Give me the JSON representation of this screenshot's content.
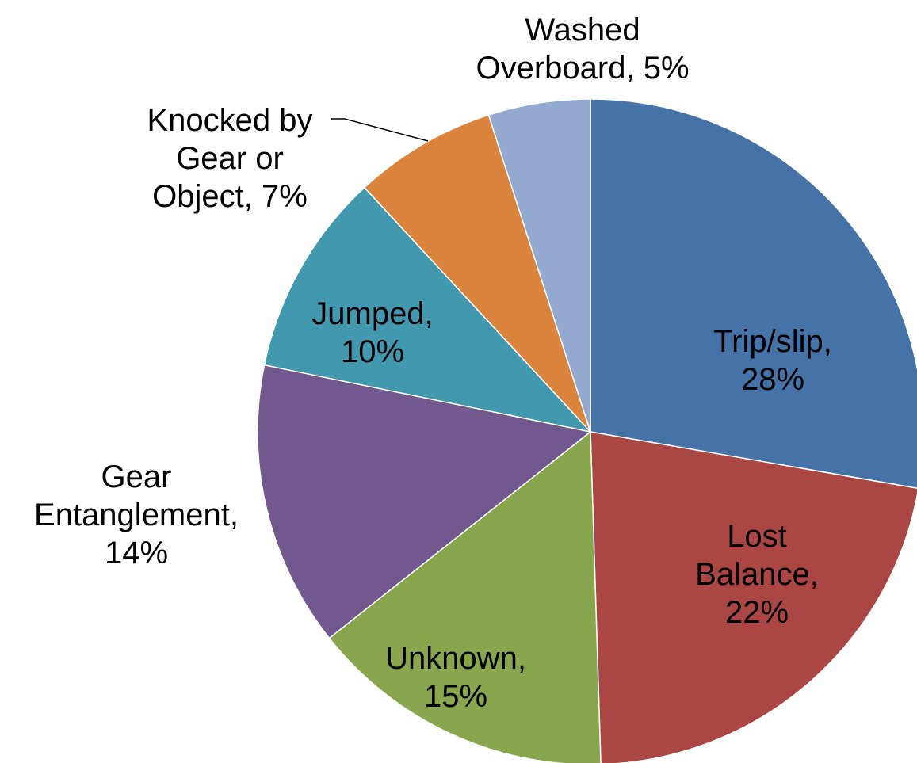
{
  "chart_data": {
    "type": "pie",
    "categories": [
      "Trip/slip",
      "Lost Balance",
      "Unknown",
      "Gear Entanglement",
      "Jumped",
      "Knocked by Gear or Object",
      "Washed Overboard"
    ],
    "values": [
      28,
      22,
      15,
      14,
      10,
      7,
      5
    ],
    "value_labels": [
      "Trip/slip, 28%",
      "Lost Balance,\n22%",
      "Unknown,\n15%",
      "Gear\nEntanglement,\n14%",
      "Jumped,\n10%",
      "Knocked by\nGear or\nObject, 7%",
      "Washed\nOverboard, 5%"
    ],
    "colors": [
      "#4572a7",
      "#aa4643",
      "#89a54e",
      "#71588f",
      "#4198af",
      "#db843d",
      "#93a9cf"
    ]
  }
}
